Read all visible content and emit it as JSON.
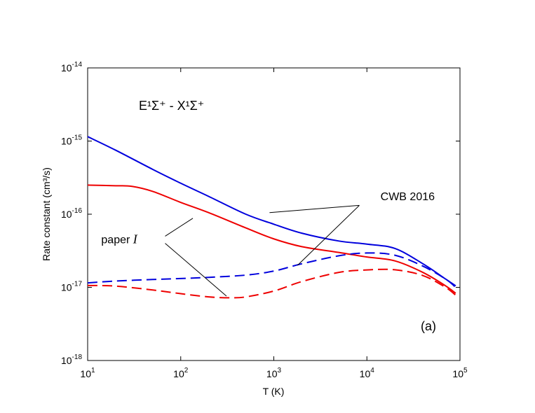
{
  "chart_data": {
    "type": "line",
    "xlabel": "T (K)",
    "ylabel": "Rate constant (cm³/s)",
    "xscale": "log",
    "yscale": "log",
    "xlim": [
      10,
      100000
    ],
    "ylim": [
      1e-18,
      1e-14
    ],
    "grid": false,
    "x_ticks": [
      {
        "value": 10,
        "label": "10",
        "exp": "1"
      },
      {
        "value": 100,
        "label": "10",
        "exp": "2"
      },
      {
        "value": 1000,
        "label": "10",
        "exp": "3"
      },
      {
        "value": 10000,
        "label": "10",
        "exp": "4"
      },
      {
        "value": 100000,
        "label": "10",
        "exp": "5"
      }
    ],
    "y_ticks": [
      {
        "value": 1e-18,
        "label": "10",
        "exp": "-18"
      },
      {
        "value": 1e-17,
        "label": "10",
        "exp": "-17"
      },
      {
        "value": 1e-16,
        "label": "10",
        "exp": "-16"
      },
      {
        "value": 1e-15,
        "label": "10",
        "exp": "-15"
      },
      {
        "value": 1e-14,
        "label": "10",
        "exp": "-14"
      }
    ],
    "transition_label": "E¹Σ⁺ - X¹Σ⁺",
    "panel_label": "(a)",
    "series": [
      {
        "color": "#0000dd",
        "dash": "solid",
        "x": [
          10,
          20,
          50,
          100,
          200,
          500,
          1000,
          2000,
          5000,
          10000,
          20000,
          40000,
          70000,
          90000
        ],
        "y": [
          1.15e-15,
          7.5e-16,
          4.1e-16,
          2.65e-16,
          1.75e-16,
          1e-16,
          7.3e-17,
          5.5e-17,
          4.3e-17,
          3.9e-17,
          3.4e-17,
          2.1e-17,
          1.3e-17,
          1.05e-17
        ]
      },
      {
        "color": "#ee0000",
        "dash": "solid",
        "x": [
          10,
          20,
          30,
          50,
          100,
          200,
          500,
          1000,
          2000,
          5000,
          10000,
          20000,
          40000,
          70000,
          90000
        ],
        "y": [
          2.5e-16,
          2.45e-16,
          2.4e-16,
          2.05e-16,
          1.45e-16,
          1.05e-16,
          6.5e-17,
          4.6e-17,
          3.6e-17,
          3e-17,
          2.6e-17,
          2.3e-17,
          1.6e-17,
          1.05e-17,
          8.3e-18
        ]
      },
      {
        "color": "#0000dd",
        "dash": "dashed",
        "x": [
          10,
          20,
          50,
          100,
          200,
          500,
          1000,
          2000,
          5000,
          10000,
          20000,
          40000,
          70000,
          90000
        ],
        "y": [
          1.15e-17,
          1.22e-17,
          1.28e-17,
          1.32e-17,
          1.37e-17,
          1.47e-17,
          1.67e-17,
          2.1e-17,
          2.7e-17,
          2.95e-17,
          2.75e-17,
          1.95e-17,
          1.3e-17,
          1e-17
        ]
      },
      {
        "color": "#ee0000",
        "dash": "dashed",
        "x": [
          10,
          20,
          50,
          100,
          200,
          350,
          500,
          1000,
          2000,
          5000,
          10000,
          20000,
          40000,
          70000,
          90000
        ],
        "y": [
          1.06e-17,
          1.04e-17,
          9.2e-18,
          8.2e-18,
          7.4e-18,
          7.2e-18,
          7.4e-18,
          8.9e-18,
          1.2e-17,
          1.6e-17,
          1.73e-17,
          1.74e-17,
          1.45e-17,
          1e-17,
          7.8e-18
        ]
      }
    ],
    "annotations": [
      {
        "text": "CWB 2016",
        "label_at": {
          "x": 14000,
          "y": 1.55e-16
        },
        "pointers": [
          {
            "from": {
              "x": 8300,
              "y": 1.32e-16
            },
            "to": {
              "x": 900,
              "y": 1.05e-16
            }
          },
          {
            "from": {
              "x": 8300,
              "y": 1.32e-16
            },
            "to": {
              "x": 1800,
              "y": 2e-17
            }
          }
        ]
      },
      {
        "text": "paper ",
        "italic_suffix": "I",
        "label_at": {
          "x": 14,
          "y": 4e-17
        },
        "pointers": [
          {
            "from": {
              "x": 68,
              "y": 5e-17
            },
            "to": {
              "x": 135,
              "y": 8.8e-17
            }
          },
          {
            "from": {
              "x": 68,
              "y": 4e-17
            },
            "to": {
              "x": 310,
              "y": 7.6e-18
            }
          }
        ]
      }
    ]
  }
}
